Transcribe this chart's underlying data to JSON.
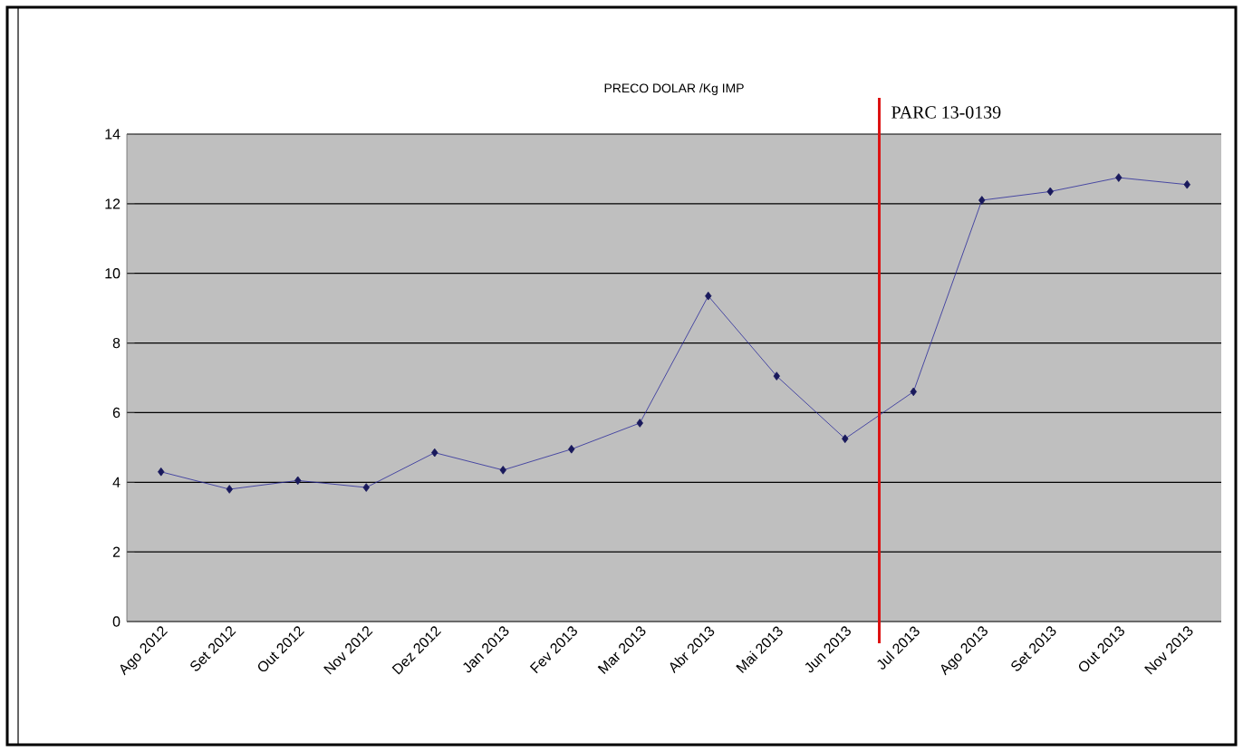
{
  "chart_data": {
    "type": "line",
    "title": "PRECO DOLAR /Kg IMP",
    "categories": [
      "Ago 2012",
      "Set 2012",
      "Out 2012",
      "Nov 2012",
      "Dez 2012",
      "Jan 2013",
      "Fev 2013",
      "Mar 2013",
      "Abr 2013",
      "Mai 2013",
      "Jun 2013",
      "Jul 2013",
      "Ago 2013",
      "Set 2013",
      "Out 2013",
      "Nov 2013"
    ],
    "series": [
      {
        "color": "#2a2a9a",
        "values": [
          4.3,
          3.8,
          4.05,
          3.85,
          4.85,
          4.35,
          4.95,
          5.7,
          9.35,
          7.05,
          5.25,
          6.6,
          12.1,
          12.35,
          12.75,
          12.55
        ]
      }
    ],
    "ylim": [
      0,
      14
    ],
    "yticks": [
      0,
      2,
      4,
      6,
      8,
      10,
      12,
      14
    ],
    "grid": "y",
    "marker": "diamond",
    "ref_lines": [
      {
        "axis": "x",
        "value": "Jul 2013",
        "label": "PARC 13-0139",
        "color": "#dd1111"
      }
    ]
  }
}
